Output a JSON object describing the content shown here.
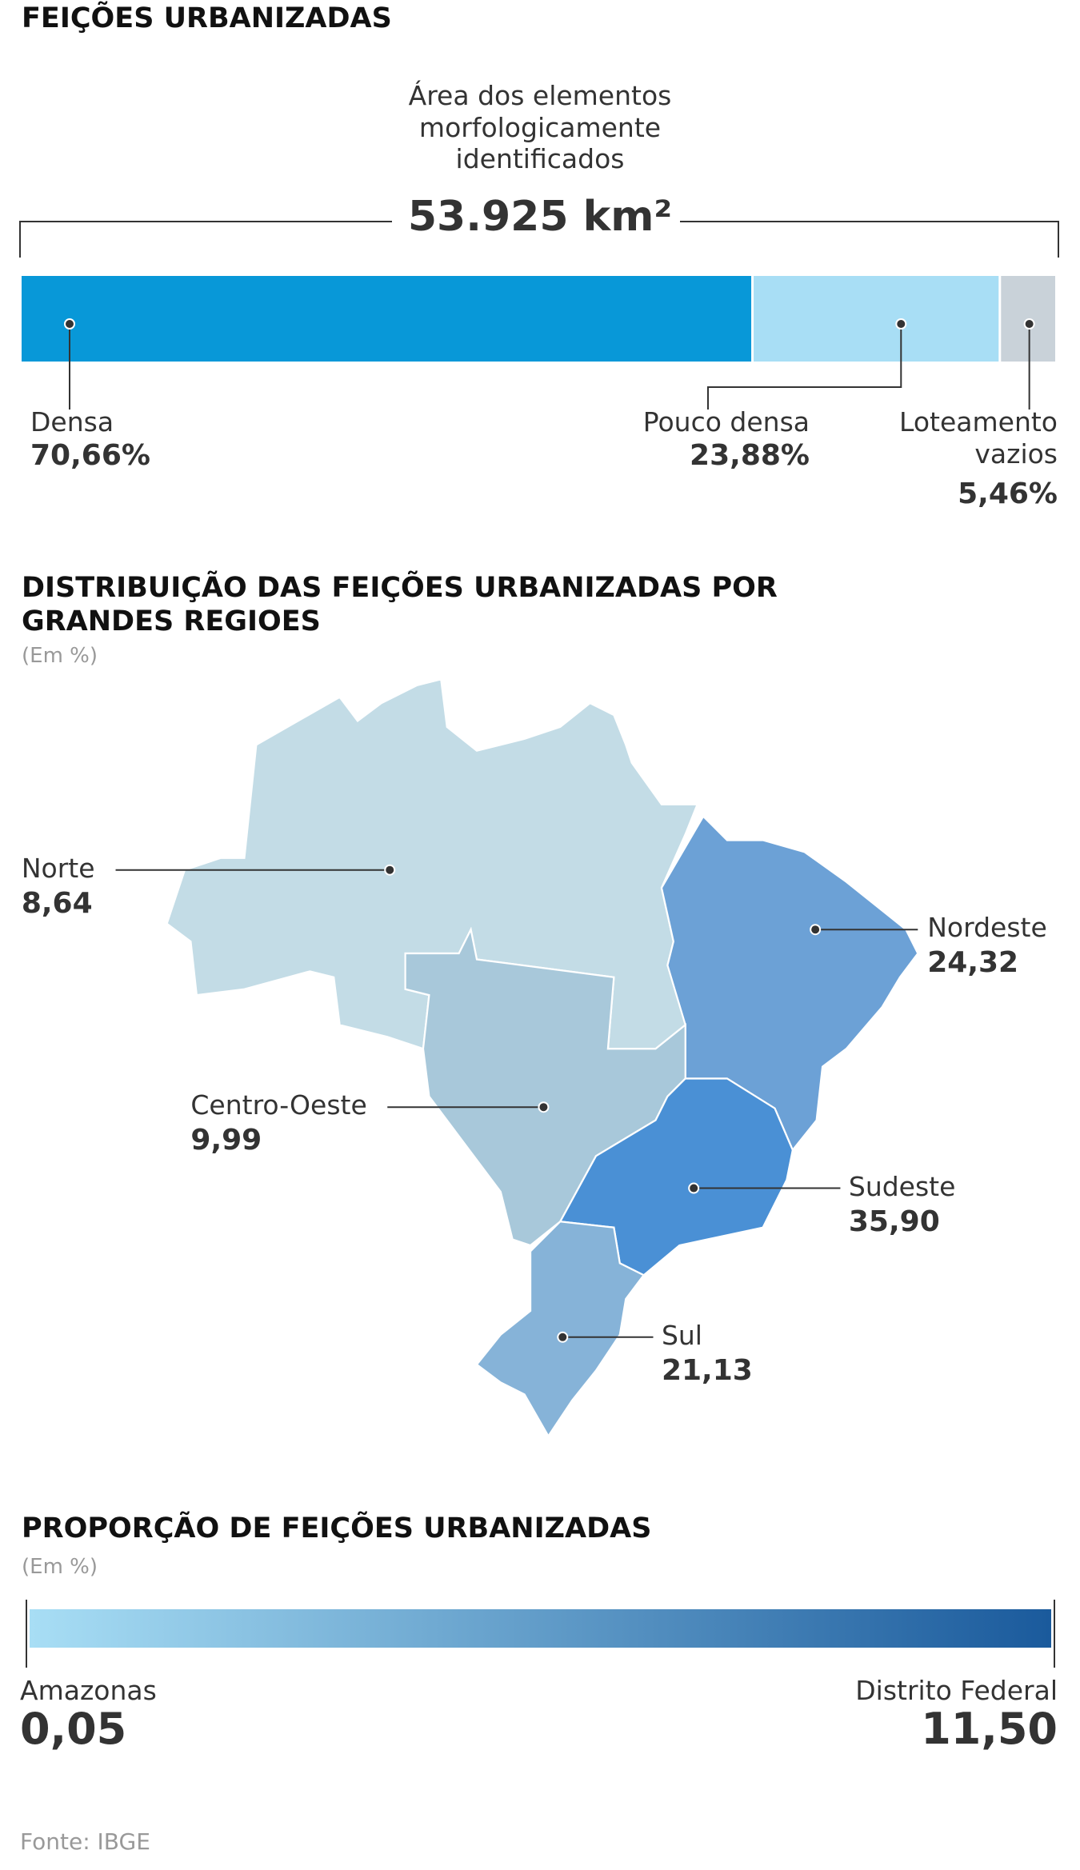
{
  "chart_data": [
    {
      "type": "stacked-bar",
      "title": "FEIÇÕES URBANIZADAS",
      "annotation": "Área dos elementos morfologicamente identificados",
      "total": {
        "value": 53925,
        "label": "53.925 km²"
      },
      "categories": [
        "Densa",
        "Pouco densa",
        "Loteamento vazios"
      ],
      "values": [
        70.66,
        23.88,
        5.46
      ],
      "value_labels": [
        "70,66%",
        "23,88%",
        "5,46%"
      ],
      "colors": [
        "#0898d8",
        "#a8def5",
        "#c9d2d9"
      ]
    },
    {
      "type": "map",
      "title": "DISTRIBUIÇÃO DAS FEIÇÕES URBANIZADAS POR GRANDES REGIOES",
      "subtitle": "(Em %)",
      "categories": [
        "Norte",
        "Nordeste",
        "Centro-Oeste",
        "Sudeste",
        "Sul"
      ],
      "values": [
        8.64,
        24.32,
        9.99,
        35.9,
        21.13
      ],
      "value_labels": [
        "8,64",
        "24,32",
        "9,99",
        "35,90",
        "21,13"
      ],
      "colors": [
        "#c3dce6",
        "#6ca1d6",
        "#a8c8da",
        "#4a90d5",
        "#86b3d8"
      ]
    },
    {
      "type": "range",
      "title": "PROPORÇÃO DE FEIÇÕES URBANIZADAS",
      "subtitle": "(Em %)",
      "categories": [
        "Amazonas",
        "Distrito Federal"
      ],
      "values": [
        0.05,
        11.5
      ],
      "value_labels": [
        "0,05",
        "11,50"
      ],
      "colors": [
        "#a8def5",
        "#1a5a9c"
      ]
    }
  ],
  "source": "Fonte: IBGE"
}
